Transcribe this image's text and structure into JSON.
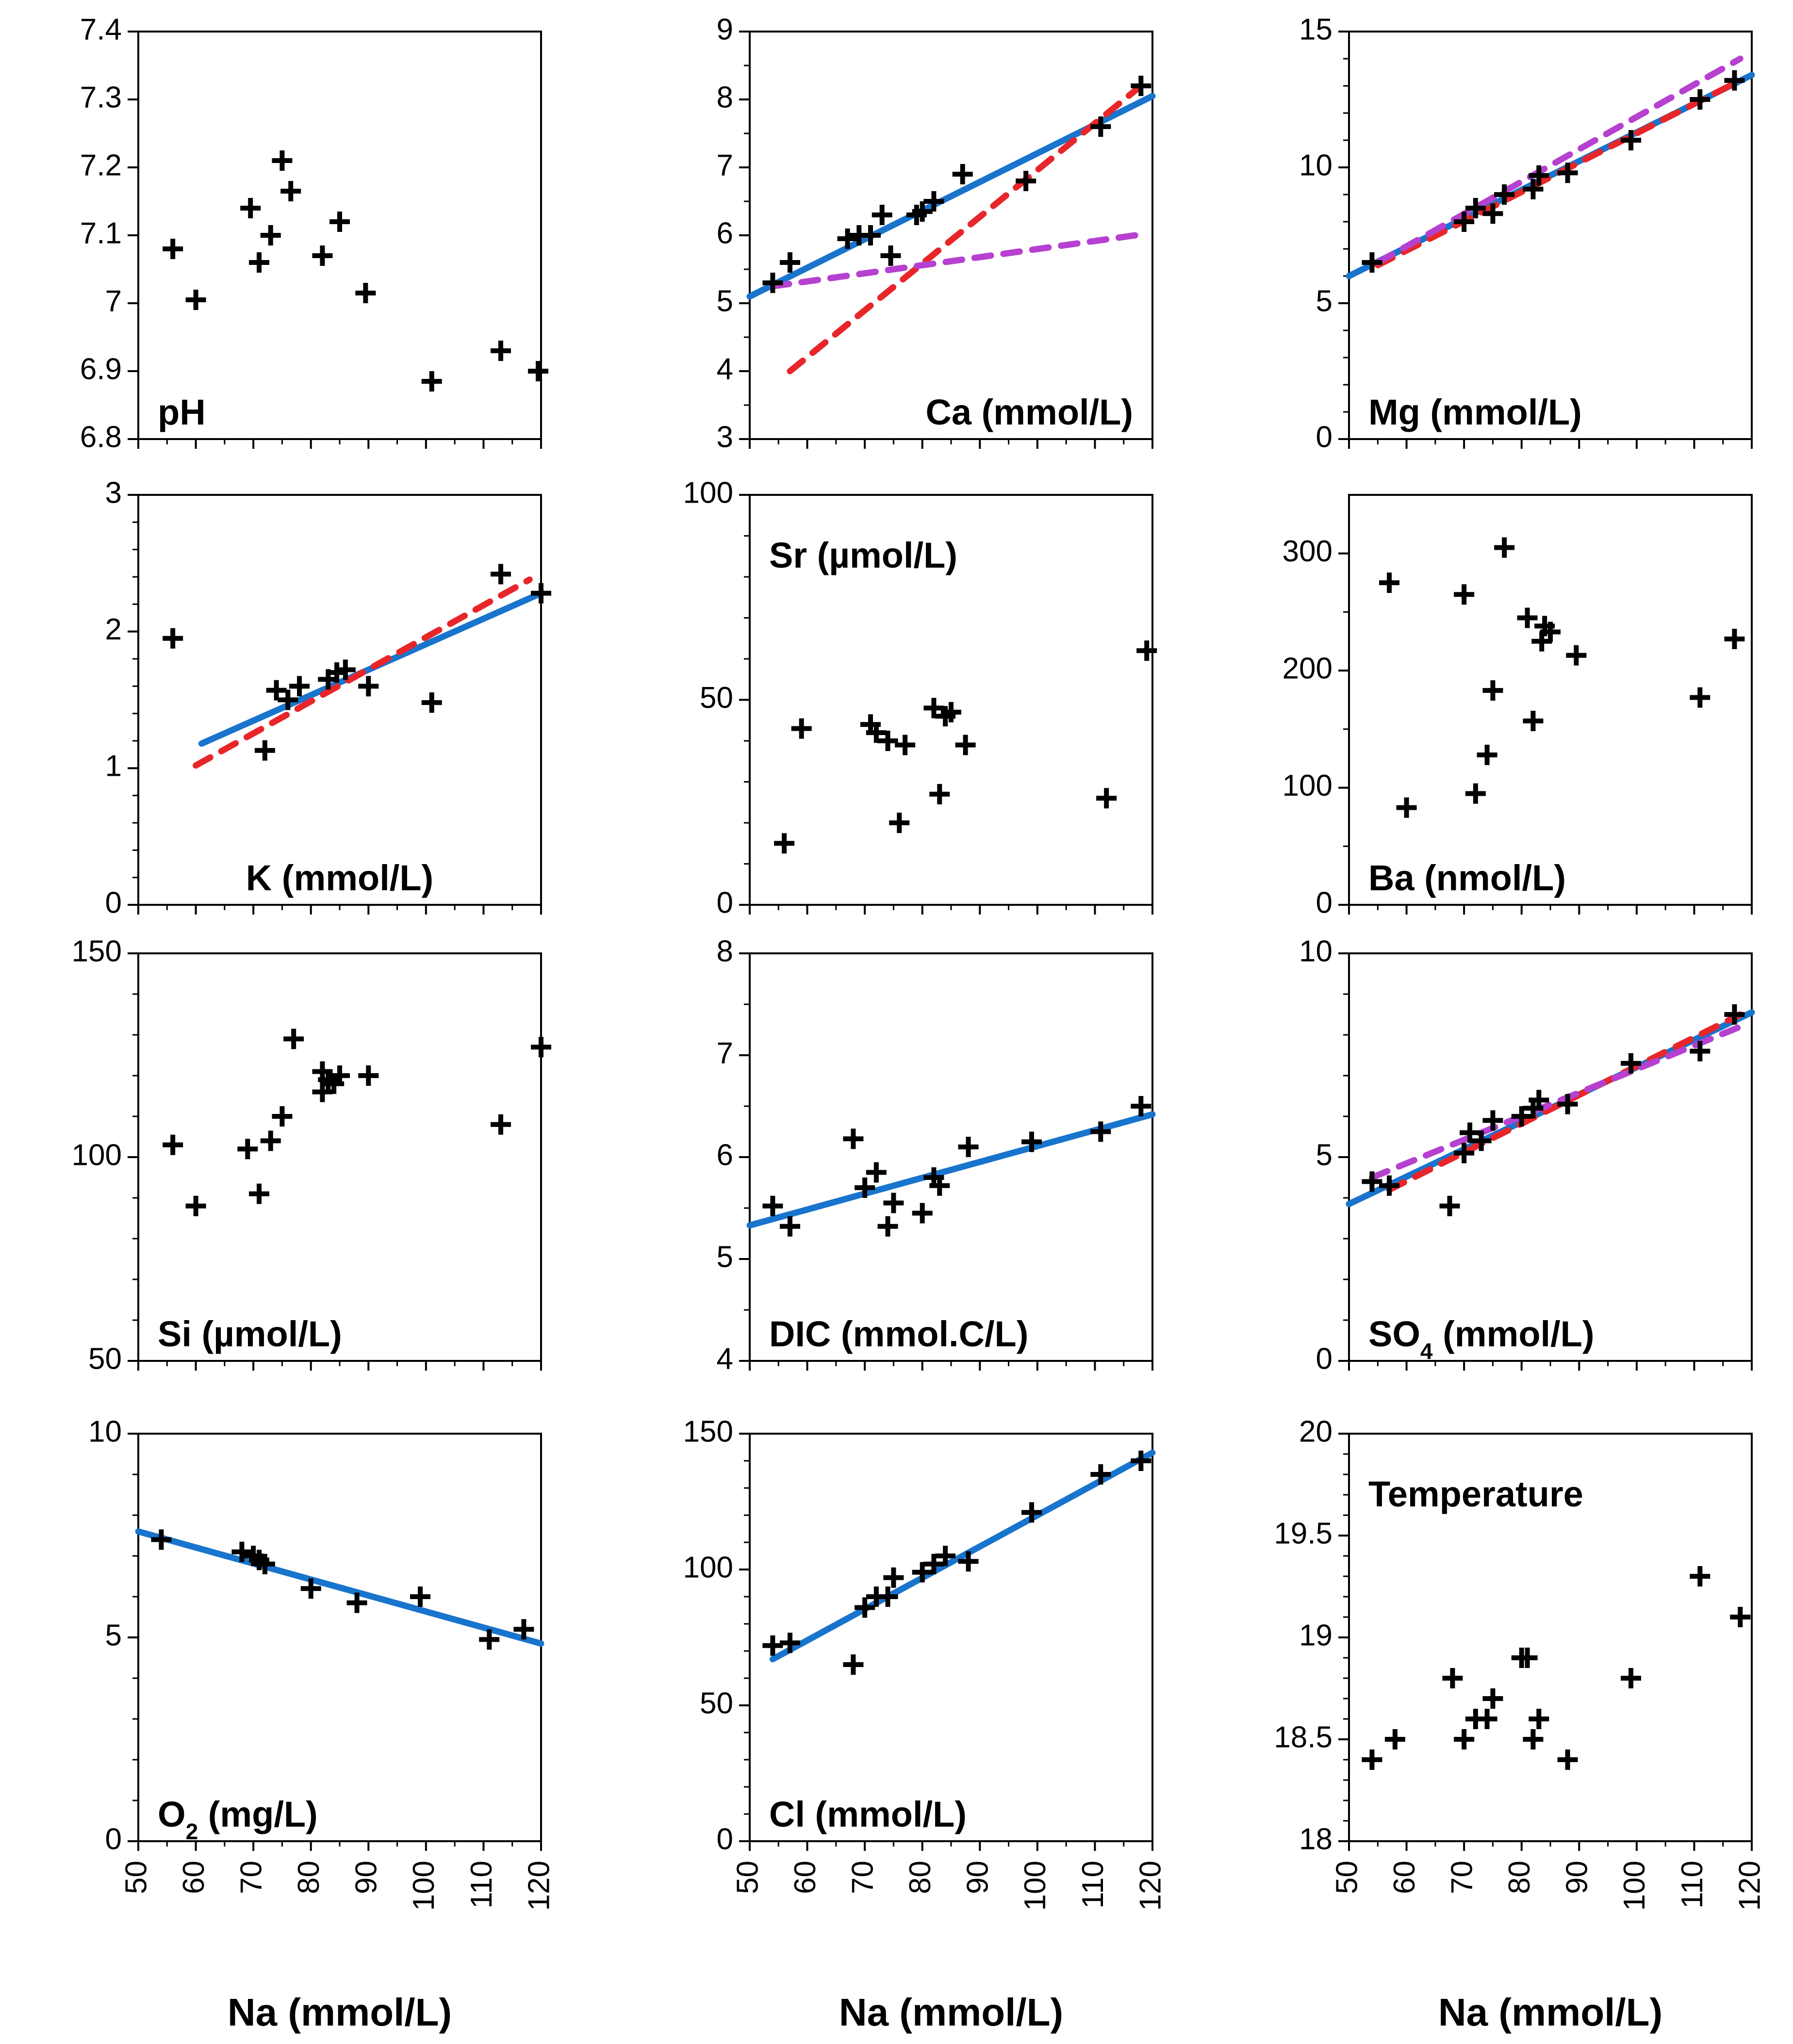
{
  "figure": {
    "x_axis_title": "Na (mmol/L)"
  },
  "chart_data": [
    {
      "id": "pH",
      "type": "scatter",
      "label": "pH",
      "label_sub": "",
      "label_rest": "",
      "label_pos": "bottom-left",
      "xlim": [
        50,
        120
      ],
      "ylim": [
        6.8,
        7.4
      ],
      "yticks": [
        "6.8",
        "6.9",
        "7",
        "7.1",
        "7.2",
        "7.3",
        "7.4"
      ],
      "yminor": 0,
      "points": [
        [
          56,
          7.08
        ],
        [
          60,
          7.005
        ],
        [
          69.5,
          7.14
        ],
        [
          71,
          7.06
        ],
        [
          73,
          7.1
        ],
        [
          75,
          7.21
        ],
        [
          76.5,
          7.165
        ],
        [
          82,
          7.07
        ],
        [
          85,
          7.12
        ],
        [
          89.5,
          7.015
        ],
        [
          101,
          6.885
        ],
        [
          113,
          6.93
        ],
        [
          119.5,
          6.9
        ]
      ],
      "lines": []
    },
    {
      "id": "Ca",
      "type": "scatter",
      "label": "Ca (mmol/L)",
      "label_sub": "",
      "label_rest": "",
      "label_pos": "bottom-right",
      "xlim": [
        50,
        120
      ],
      "ylim": [
        3,
        9
      ],
      "yticks": [
        "3",
        "4",
        "5",
        "6",
        "7",
        "8",
        "9"
      ],
      "yminor": 1,
      "points": [
        [
          54,
          5.3
        ],
        [
          57,
          5.6
        ],
        [
          67,
          5.95
        ],
        [
          69,
          6.0
        ],
        [
          71,
          6.0
        ],
        [
          73,
          6.3
        ],
        [
          74.5,
          5.7
        ],
        [
          79,
          6.3
        ],
        [
          80,
          6.35
        ],
        [
          82,
          6.5
        ],
        [
          87,
          6.9
        ],
        [
          98,
          6.8
        ],
        [
          111,
          7.6
        ],
        [
          118,
          8.2
        ]
      ],
      "lines": [
        {
          "style": "solid",
          "color": "#1874cd",
          "x": [
            50,
            120
          ],
          "y": [
            5.1,
            8.05
          ]
        },
        {
          "style": "dashed",
          "color": "#e8262a",
          "x": [
            57,
            118
          ],
          "y": [
            4.0,
            8.2
          ]
        },
        {
          "style": "dashed",
          "color": "#b640d0",
          "x": [
            54,
            117
          ],
          "y": [
            5.25,
            6.0
          ]
        }
      ]
    },
    {
      "id": "Mg",
      "type": "scatter",
      "label": "Mg (mmol/L)",
      "label_sub": "",
      "label_rest": "",
      "label_pos": "bottom-left",
      "xlim": [
        50,
        120
      ],
      "ylim": [
        0,
        15
      ],
      "yticks": [
        "0",
        "5",
        "10",
        "15"
      ],
      "yminor": 4,
      "points": [
        [
          54,
          6.5
        ],
        [
          70,
          8
        ],
        [
          72,
          8.5
        ],
        [
          75,
          8.3
        ],
        [
          77,
          9.0
        ],
        [
          82,
          9.2
        ],
        [
          83,
          9.7
        ],
        [
          88,
          9.8
        ],
        [
          99,
          11
        ],
        [
          111,
          12.5
        ],
        [
          117,
          13.2
        ]
      ],
      "lines": [
        {
          "style": "solid",
          "color": "#1874cd",
          "x": [
            50,
            120
          ],
          "y": [
            6.0,
            13.4
          ]
        },
        {
          "style": "dashed",
          "color": "#e8262a",
          "x": [
            55,
            118
          ],
          "y": [
            6.4,
            13.2
          ]
        },
        {
          "style": "dashed",
          "color": "#b640d0",
          "x": [
            55,
            118
          ],
          "y": [
            6.5,
            14.0
          ]
        }
      ]
    },
    {
      "id": "K",
      "type": "scatter",
      "label": "K (mmol/L)",
      "label_sub": "",
      "label_rest": "",
      "label_pos": "bottom-center",
      "xlim": [
        50,
        120
      ],
      "ylim": [
        0,
        3
      ],
      "yticks": [
        "0",
        "1",
        "2",
        "3"
      ],
      "yminor": 4,
      "points": [
        [
          56,
          1.95
        ],
        [
          72,
          1.13
        ],
        [
          74,
          1.57
        ],
        [
          76,
          1.5
        ],
        [
          78,
          1.6
        ],
        [
          83,
          1.65
        ],
        [
          84.5,
          1.7
        ],
        [
          86,
          1.72
        ],
        [
          90,
          1.6
        ],
        [
          101,
          1.48
        ],
        [
          113,
          2.42
        ],
        [
          120,
          2.28
        ]
      ],
      "lines": [
        {
          "style": "solid",
          "color": "#1874cd",
          "x": [
            61,
            120
          ],
          "y": [
            1.18,
            2.28
          ]
        },
        {
          "style": "dashed",
          "color": "#e8262a",
          "x": [
            60,
            118
          ],
          "y": [
            1.02,
            2.38
          ]
        }
      ]
    },
    {
      "id": "Sr",
      "type": "scatter",
      "label": "Sr (µmol/L)",
      "label_sub": "",
      "label_rest": "",
      "label_pos": "top-left",
      "xlim": [
        50,
        120
      ],
      "ylim": [
        0,
        100
      ],
      "yticks": [
        "0",
        "50",
        "100"
      ],
      "yminor": 4,
      "points": [
        [
          56,
          15
        ],
        [
          59,
          43
        ],
        [
          71,
          44
        ],
        [
          72,
          42
        ],
        [
          74,
          40
        ],
        [
          76,
          20
        ],
        [
          77,
          39
        ],
        [
          82,
          48
        ],
        [
          83,
          27
        ],
        [
          84,
          46
        ],
        [
          85,
          47
        ],
        [
          87.5,
          39
        ],
        [
          112,
          26
        ],
        [
          119,
          62
        ]
      ],
      "lines": []
    },
    {
      "id": "Ba",
      "type": "scatter",
      "label": "Ba (nmol/L)",
      "label_sub": "",
      "label_rest": "",
      "label_pos": "bottom-left",
      "xlim": [
        50,
        120
      ],
      "ylim": [
        0,
        350
      ],
      "yticks": [
        "0",
        "100",
        "200",
        "300"
      ],
      "yminor": 1,
      "points": [
        [
          57,
          275
        ],
        [
          60,
          83
        ],
        [
          70,
          265
        ],
        [
          72,
          95
        ],
        [
          74,
          128
        ],
        [
          75,
          183
        ],
        [
          77,
          305
        ],
        [
          81,
          245
        ],
        [
          82,
          157
        ],
        [
          83.5,
          225
        ],
        [
          84,
          238
        ],
        [
          85,
          233
        ],
        [
          89.5,
          213
        ],
        [
          111,
          177
        ],
        [
          117,
          227
        ]
      ],
      "lines": []
    },
    {
      "id": "Si",
      "type": "scatter",
      "label": "Si (µmol/L)",
      "label_sub": "",
      "label_rest": "",
      "label_pos": "bottom-left",
      "xlim": [
        50,
        120
      ],
      "ylim": [
        50,
        150
      ],
      "yticks": [
        "50",
        "100",
        "150"
      ],
      "yminor": 4,
      "points": [
        [
          56,
          103
        ],
        [
          60,
          88
        ],
        [
          69,
          102
        ],
        [
          71,
          91
        ],
        [
          73,
          104
        ],
        [
          75,
          110
        ],
        [
          77,
          129
        ],
        [
          82,
          121
        ],
        [
          82,
          116
        ],
        [
          83,
          119
        ],
        [
          84,
          118
        ],
        [
          85,
          120
        ],
        [
          90,
          120
        ],
        [
          113,
          108
        ],
        [
          120,
          127
        ]
      ],
      "lines": []
    },
    {
      "id": "DIC",
      "type": "scatter",
      "label": "DIC (mmol.C/L)",
      "label_sub": "",
      "label_rest": "",
      "label_pos": "bottom-left",
      "xlim": [
        50,
        120
      ],
      "ylim": [
        4,
        8
      ],
      "yticks": [
        "4",
        "5",
        "6",
        "7",
        "8"
      ],
      "yminor": 1,
      "points": [
        [
          54,
          5.52
        ],
        [
          57,
          5.32
        ],
        [
          68,
          6.18
        ],
        [
          70,
          5.7
        ],
        [
          72,
          5.85
        ],
        [
          74,
          5.32
        ],
        [
          75,
          5.55
        ],
        [
          80,
          5.45
        ],
        [
          82,
          5.8
        ],
        [
          83,
          5.72
        ],
        [
          88,
          6.1
        ],
        [
          99,
          6.15
        ],
        [
          111,
          6.25
        ],
        [
          118,
          6.5
        ]
      ],
      "lines": [
        {
          "style": "solid",
          "color": "#1874cd",
          "x": [
            50,
            120
          ],
          "y": [
            5.33,
            6.42
          ]
        }
      ]
    },
    {
      "id": "SO4",
      "type": "scatter",
      "label": "SO",
      "label_sub": "4",
      "label_rest": " (mmol/L)",
      "label_pos": "bottom-left",
      "xlim": [
        50,
        120
      ],
      "ylim": [
        0,
        10
      ],
      "yticks": [
        "0",
        "5",
        "10"
      ],
      "yminor": 4,
      "points": [
        [
          54,
          4.4
        ],
        [
          57,
          4.3
        ],
        [
          67.5,
          3.8
        ],
        [
          70,
          5.1
        ],
        [
          71,
          5.6
        ],
        [
          73,
          5.4
        ],
        [
          75,
          5.9
        ],
        [
          80,
          6.0
        ],
        [
          82,
          6.2
        ],
        [
          83,
          6.4
        ],
        [
          88,
          6.3
        ],
        [
          99,
          7.3
        ],
        [
          111,
          7.6
        ],
        [
          117,
          8.5
        ]
      ],
      "lines": [
        {
          "style": "solid",
          "color": "#1874cd",
          "x": [
            50,
            120
          ],
          "y": [
            3.85,
            8.55
          ]
        },
        {
          "style": "dashed",
          "color": "#e8262a",
          "x": [
            57,
            118
          ],
          "y": [
            4.2,
            8.5
          ]
        },
        {
          "style": "dashed",
          "color": "#b640d0",
          "x": [
            54,
            118
          ],
          "y": [
            4.5,
            8.2
          ]
        }
      ]
    },
    {
      "id": "O2",
      "type": "scatter",
      "label": "O",
      "label_sub": "2",
      "label_rest": " (mg/L)",
      "label_pos": "bottom-left",
      "xlim": [
        50,
        120
      ],
      "ylim": [
        0,
        10
      ],
      "yticks": [
        "0",
        "5",
        "10"
      ],
      "yminor": 4,
      "points": [
        [
          54,
          7.4
        ],
        [
          68,
          7.1
        ],
        [
          70,
          7.0
        ],
        [
          71,
          6.9
        ],
        [
          72,
          6.8
        ],
        [
          80,
          6.2
        ],
        [
          88,
          5.85
        ],
        [
          99,
          6.0
        ],
        [
          111,
          4.95
        ],
        [
          117,
          5.2
        ]
      ],
      "lines": [
        {
          "style": "solid",
          "color": "#1874cd",
          "x": [
            50,
            120
          ],
          "y": [
            7.6,
            4.85
          ]
        }
      ]
    },
    {
      "id": "Cl",
      "type": "scatter",
      "label": "Cl (mmol/L)",
      "label_sub": "",
      "label_rest": "",
      "label_pos": "bottom-left",
      "xlim": [
        50,
        120
      ],
      "ylim": [
        0,
        150
      ],
      "yticks": [
        "0",
        "50",
        "100",
        "150"
      ],
      "yminor": 4,
      "points": [
        [
          54,
          72
        ],
        [
          57,
          73
        ],
        [
          68,
          65
        ],
        [
          70,
          86
        ],
        [
          72,
          90
        ],
        [
          74,
          90
        ],
        [
          75,
          97
        ],
        [
          80,
          99
        ],
        [
          82,
          102
        ],
        [
          84,
          105
        ],
        [
          88,
          103
        ],
        [
          99,
          121
        ],
        [
          111,
          135
        ],
        [
          118,
          140
        ]
      ],
      "lines": [
        {
          "style": "solid",
          "color": "#1874cd",
          "x": [
            54,
            120
          ],
          "y": [
            67,
            143
          ]
        }
      ]
    },
    {
      "id": "Temp",
      "type": "scatter",
      "label": "Temperature",
      "label_sub": "",
      "label_rest": "",
      "label_pos": "top-left",
      "xlim": [
        50,
        120
      ],
      "ylim": [
        18,
        20
      ],
      "yticks": [
        "18",
        "18.5",
        "19",
        "19.5",
        "20"
      ],
      "yminor": 4,
      "points": [
        [
          54,
          18.4
        ],
        [
          58,
          18.5
        ],
        [
          68,
          18.8
        ],
        [
          70,
          18.5
        ],
        [
          72,
          18.6
        ],
        [
          74,
          18.6
        ],
        [
          75,
          18.7
        ],
        [
          80,
          18.9
        ],
        [
          81,
          18.9
        ],
        [
          82,
          18.5
        ],
        [
          83,
          18.6
        ],
        [
          88,
          18.4
        ],
        [
          99,
          18.8
        ],
        [
          111,
          19.3
        ],
        [
          118,
          19.1
        ]
      ],
      "lines": []
    }
  ]
}
